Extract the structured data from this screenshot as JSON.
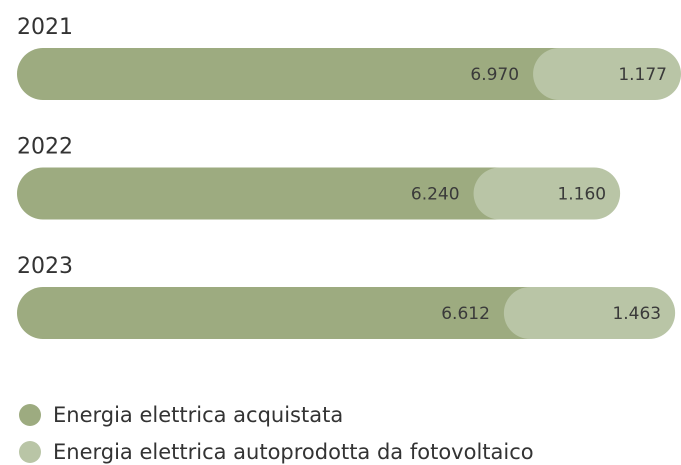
{
  "chart_data": {
    "type": "stacked-bar-horizontal",
    "categories": [
      "2021",
      "2022",
      "2023"
    ],
    "series": [
      {
        "name": "Energia elettrica acquistata",
        "color": "#9dab80",
        "values": [
          6970,
          6240,
          6612
        ],
        "value_labels": [
          "6.970",
          "6.240",
          "6.612"
        ]
      },
      {
        "name": "Energia elettrica autoprodotta da fotovoltaico",
        "color": "#b9c5a6",
        "values": [
          1177,
          1160,
          1463
        ],
        "value_labels": [
          "1.177",
          "1.160",
          "1.463"
        ]
      }
    ]
  }
}
